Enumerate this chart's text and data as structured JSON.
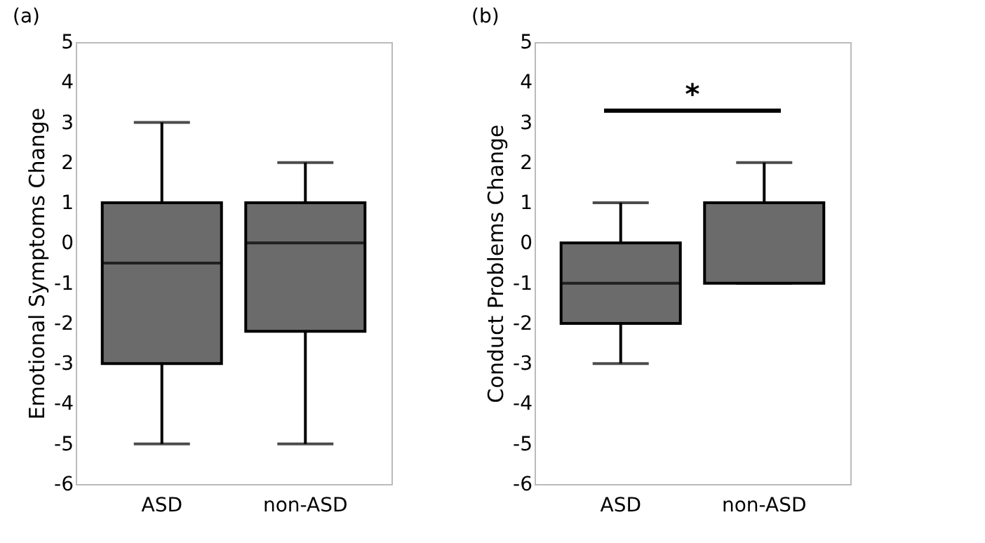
{
  "chart_data": [
    {
      "type": "box",
      "title": "(a)",
      "ylabel": "Emotional Symptoms Change",
      "categories": [
        "ASD",
        "non-ASD"
      ],
      "color": "#6b6b6b",
      "boxes": [
        {
          "low": -5,
          "q1": -3,
          "median": -0.5,
          "q3": 1,
          "high": 3
        },
        {
          "low": -5,
          "q1": -2.2,
          "median": 0,
          "q3": 1,
          "high": 2
        }
      ],
      "ylim": [
        -6,
        5
      ],
      "yticks": [
        -6,
        -5,
        -4,
        -3,
        -2,
        -1,
        0,
        1,
        2,
        3,
        4,
        5
      ],
      "grid": false
    },
    {
      "type": "box",
      "title": "(b)",
      "ylabel": "Conduct Problems Change",
      "categories": [
        "ASD",
        "non-ASD"
      ],
      "color": "#6b6b6b",
      "boxes": [
        {
          "low": -3,
          "q1": -2,
          "median": -1,
          "q3": 0,
          "high": 1
        },
        {
          "low": -1,
          "q1": -1,
          "median": 1,
          "q3": 1,
          "high": 2
        }
      ],
      "ylim": [
        -6,
        5
      ],
      "yticks": [
        -6,
        -5,
        -4,
        -3,
        -2,
        -1,
        0,
        1,
        2,
        3,
        4,
        5
      ],
      "grid": false,
      "annotations": [
        "*"
      ]
    }
  ]
}
